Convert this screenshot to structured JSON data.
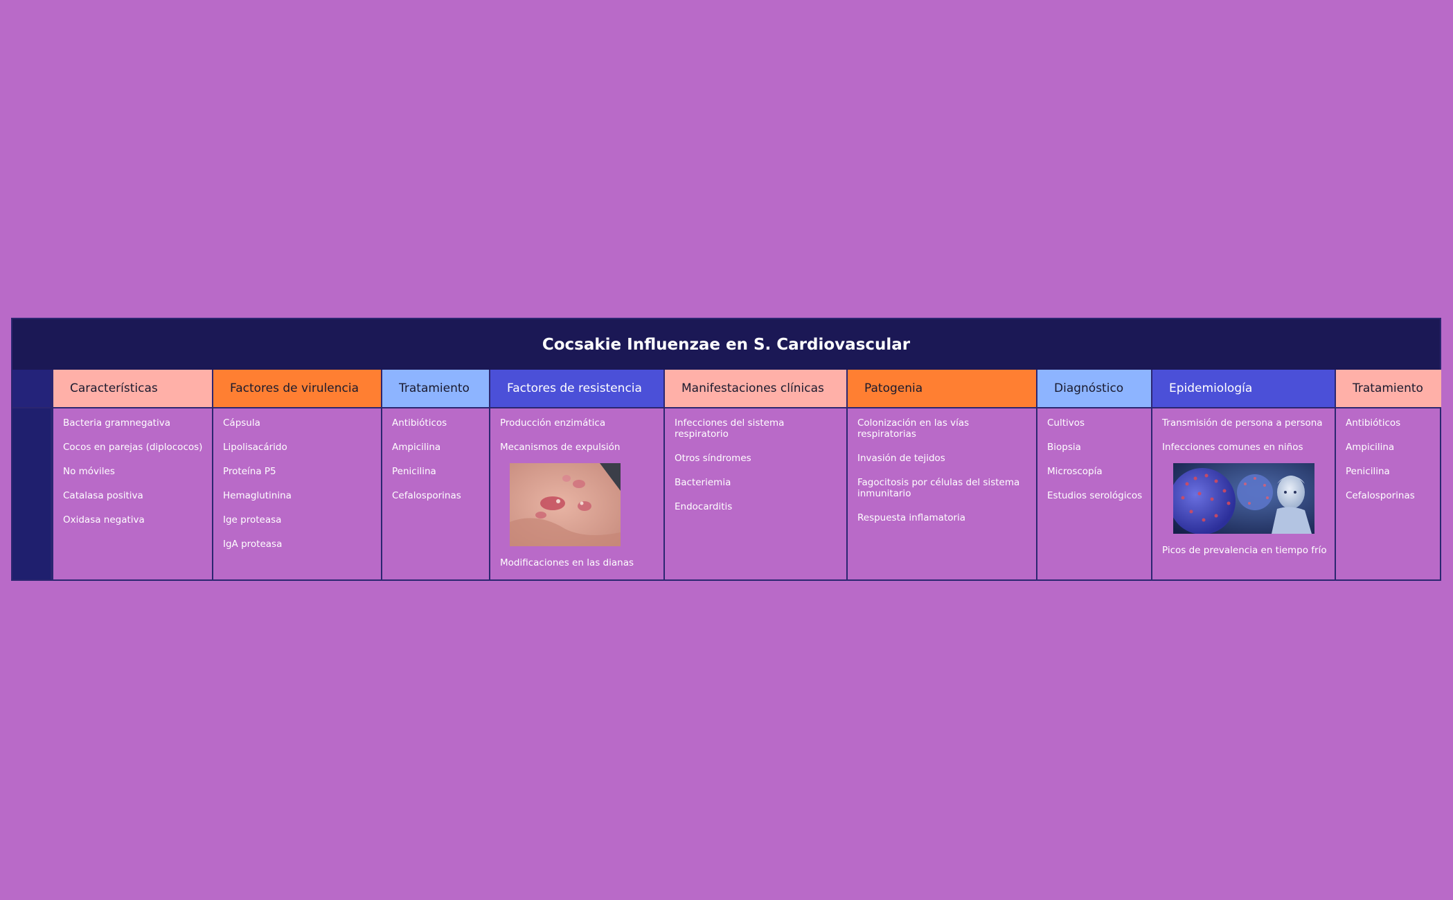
{
  "title": "Cocsakie Influenzae en S. Cardiovascular",
  "colors": {
    "background": "#b96ac8",
    "title_bar": "#1b1855",
    "pink": "#ffb0a8",
    "orange": "#ff7f32",
    "light_blue": "#8db4ff",
    "indigo": "#4b50d8"
  },
  "columns": [
    {
      "header": "Características",
      "items": [
        "Bacteria gramnegativa",
        "Cocos en parejas (diplococos)",
        "No móviles",
        "Catalasa positiva",
        "Oxidasa negativa"
      ]
    },
    {
      "header": "Factores de virulencia",
      "items": [
        "Cápsula",
        "Lipolisacárido",
        "Proteína P5",
        "Hemaglutinina",
        "Ige proteasa",
        "IgA proteasa"
      ]
    },
    {
      "header": "Tratamiento",
      "items": [
        "Antibióticos",
        "Ampicilina",
        "Penicilina",
        "Cefalosporinas"
      ]
    },
    {
      "header": "Factores de resistencia",
      "items": [
        "Producción enzimática",
        "Mecanismos de expulsión"
      ],
      "image": "skin-rash-photo",
      "items_after": [
        "Modificaciones en las dianas"
      ]
    },
    {
      "header": "Manifestaciones clínicas",
      "items": [
        "Infecciones del sistema respiratorio",
        "Otros síndromes",
        "Bacteriemia",
        "Endocarditis"
      ]
    },
    {
      "header": "Patogenia",
      "items": [
        "Colonización en las vías respiratorias",
        "Invasión de tejidos",
        "Fagocitosis por células del sistema inmunitario",
        "Respuesta inflamatoria"
      ]
    },
    {
      "header": "Diagnóstico",
      "items": [
        "Cultivos",
        "Biopsia",
        "Microscopía",
        "Estudios serológicos"
      ]
    },
    {
      "header": "Epidemiología",
      "items": [
        "Transmisión de persona a persona",
        "Infecciones comunes en niños"
      ],
      "image": "virus-child-illustration",
      "items_after": [
        "Picos de prevalencia en tiempo frío"
      ]
    },
    {
      "header": "Tratamiento",
      "items": [
        "Antibióticos",
        "Ampicilina",
        "Penicilina",
        "Cefalosporinas"
      ]
    }
  ]
}
